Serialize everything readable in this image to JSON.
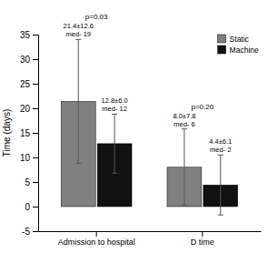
{
  "chart_data": {
    "type": "bar",
    "categories": [
      "Admission to hospital",
      "D time"
    ],
    "series": [
      {
        "name": "Static",
        "color": "#808080",
        "values": [
          21.4,
          8.0
        ],
        "errors": [
          12.6,
          7.8
        ],
        "annotations": [
          "21.4±12.6\nmed- 19",
          "8.0±7.8\nmed- 6"
        ]
      },
      {
        "name": "Machine",
        "color": "#111111",
        "values": [
          12.8,
          4.4
        ],
        "errors": [
          6.0,
          6.1
        ],
        "annotations": [
          "12.8±6.0\nmed- 12",
          "4.4±6.1\nmed- 2"
        ]
      }
    ],
    "annotations": [
      "p=0.03",
      "p=0.20"
    ],
    "ylabel": "Time (days)",
    "ylim": [
      -5,
      35
    ],
    "yticks": [
      -5,
      0,
      5,
      10,
      15,
      20,
      25,
      30,
      35
    ],
    "legend": "upper right"
  }
}
